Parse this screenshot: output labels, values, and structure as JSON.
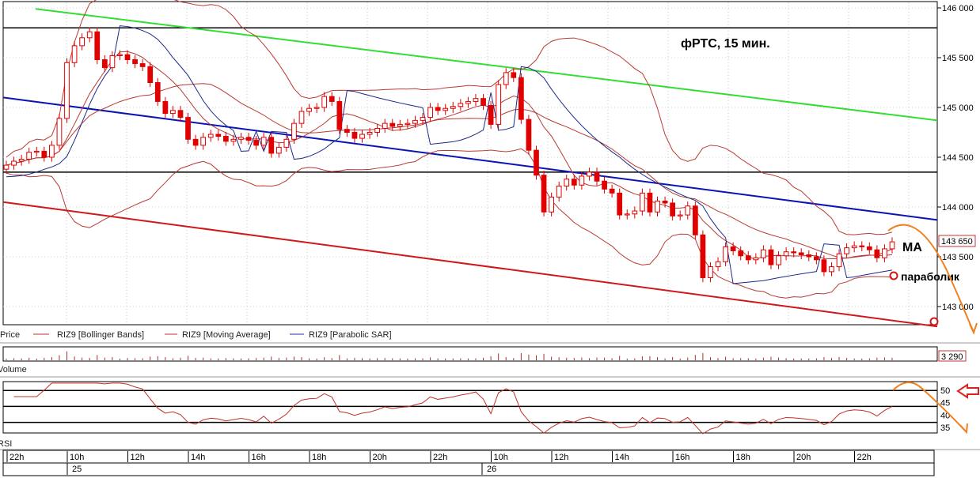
{
  "chart_data": {
    "type": "candlestick",
    "title": "фРТС,  15 мин.",
    "instrument": "RIZ9",
    "price_axis": {
      "ylim": [
        142900,
        146050
      ],
      "ticks": [
        143000,
        143500,
        144000,
        144500,
        145000,
        145500,
        146000
      ],
      "tick_labels": [
        "143 000",
        "143 500",
        "144 000",
        "144 500",
        "145 000",
        "145 500",
        "146 000"
      ],
      "last_price_label": "143 650",
      "last_price": 143650
    },
    "volume_axis": {
      "last_label": "3 290"
    },
    "rsi_axis": {
      "ticks": [
        35,
        40,
        45,
        50
      ],
      "tick_labels": [
        "35",
        "40",
        "45",
        "50"
      ]
    },
    "time_axis": {
      "hour_labels": [
        "22h",
        "10h",
        "12h",
        "14h",
        "16h",
        "18h",
        "20h",
        "22h",
        "10h",
        "12h",
        "14h",
        "16h",
        "18h",
        "20h",
        "22h"
      ],
      "date_labels": [
        "25",
        "26"
      ]
    },
    "legend": [
      {
        "label": "Price",
        "color": "#cc0000"
      },
      {
        "label": "RIZ9 [Bollinger Bands]",
        "color": "#c0302a"
      },
      {
        "label": "RIZ9 [Moving Average]",
        "color": "#c0302a"
      },
      {
        "label": "RIZ9 [Parabolic SAR]",
        "color": "#2030a0"
      }
    ],
    "panel_labels": {
      "price": "Price",
      "volume": "Volume",
      "rsi": "RSI"
    },
    "annotations": {
      "ma": "MA",
      "parabolic": "параболик"
    },
    "closes": [
      144420,
      144460,
      144480,
      144550,
      144560,
      144500,
      144620,
      144890,
      145450,
      145620,
      145700,
      145760,
      145480,
      145400,
      145520,
      145530,
      145480,
      145440,
      145410,
      145250,
      145060,
      144940,
      144970,
      144900,
      144680,
      144620,
      144700,
      144730,
      144710,
      144660,
      144680,
      144700,
      144670,
      144620,
      144700,
      144540,
      144600,
      144680,
      144840,
      144960,
      144990,
      145000,
      145110,
      145060,
      144780,
      144750,
      144690,
      144730,
      144750,
      144790,
      144840,
      144810,
      144830,
      144840,
      144870,
      144900,
      145000,
      144970,
      144990,
      145010,
      145040,
      145060,
      145090,
      145020,
      144830,
      145230,
      145350,
      145300,
      144880,
      144570,
      144320,
      143950,
      144100,
      144210,
      144280,
      144220,
      144310,
      144350,
      144260,
      144180,
      144140,
      143920,
      143930,
      143960,
      144140,
      143950,
      144060,
      144040,
      143910,
      143920,
      144010,
      143720,
      143290,
      143400,
      143450,
      143600,
      143560,
      143510,
      143470,
      143490,
      143570,
      143420,
      143510,
      143550,
      143540,
      143520,
      143500,
      143470,
      143350,
      143400,
      143530,
      143590,
      143610,
      143600,
      143570,
      143490,
      143580,
      143650
    ],
    "horizontal_levels": [
      145800,
      144350
    ],
    "trendlines": {
      "green": [
        145990,
        144870
      ],
      "blue": [
        145100,
        143870
      ],
      "red": [
        144050,
        142800
      ]
    },
    "colors": {
      "candle": "#e00000",
      "bollinger": "#b83a32",
      "sar": "#1b2a8c",
      "green_line": "#33dd33",
      "blue_line": "#0a14b4",
      "red_line": "#d01818",
      "forecast": "#f08020"
    }
  }
}
